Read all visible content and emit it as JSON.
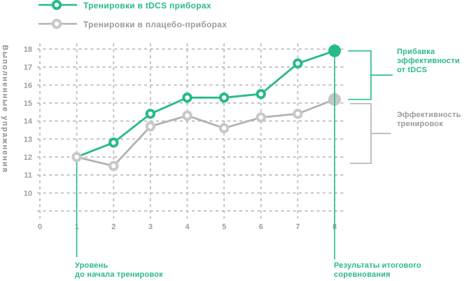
{
  "legend": {
    "items": [
      {
        "label": "Тренировки в tDCS приборах",
        "color": "#27bb85"
      },
      {
        "label": "Тренировки в плацебо-приборах",
        "color": "#9b9b9b"
      }
    ]
  },
  "axes": {
    "y_title": "Выполненные упражнения",
    "x_ticks": [
      "0",
      "1",
      "2",
      "3",
      "4",
      "5",
      "6",
      "7",
      "8"
    ],
    "y_ticks": [
      "10",
      "11",
      "12",
      "13",
      "14",
      "15",
      "16",
      "17",
      "18"
    ]
  },
  "annotations": {
    "gain": {
      "lines": [
        "Прибавка",
        "эффективности",
        "от tDCS"
      ],
      "color": "#27bb85"
    },
    "training_effect": {
      "lines": [
        "Эффективность",
        "тренировок"
      ],
      "color": "#9b9b9b"
    },
    "baseline": {
      "lines": [
        "Уровень",
        "до начала тренировок"
      ],
      "color": "#27bb85"
    },
    "final": {
      "lines": [
        "Результаты итогового",
        "соревнования"
      ],
      "color": "#27bb85"
    }
  },
  "chart_data": {
    "type": "line",
    "x": [
      1,
      2,
      3,
      4,
      5,
      6,
      7,
      8
    ],
    "series": [
      {
        "name": "Тренировки в tDCS приборах",
        "color": "#27bb85",
        "values": [
          12,
          12.8,
          14.4,
          15.3,
          15.3,
          15.5,
          17.2,
          17.9
        ]
      },
      {
        "name": "Тренировки в плацебо-приборах",
        "color": "#b2b2b2",
        "values": [
          12,
          11.5,
          13.7,
          14.3,
          13.6,
          14.2,
          14.4,
          15.2
        ]
      }
    ],
    "ylabel": "Выполненные упражнения",
    "xlabel": "",
    "xlim": [
      0,
      8
    ],
    "ylim": [
      9,
      18
    ],
    "x_tick_values": [
      0,
      1,
      2,
      3,
      4,
      5,
      6,
      7,
      8
    ],
    "y_tick_values": [
      10,
      11,
      12,
      13,
      14,
      15,
      16,
      17,
      18
    ],
    "grid": "dashed",
    "highlighted_x": [
      1,
      8
    ],
    "legend_position": "top-left",
    "marker_style": "ring-with-white-center",
    "endpoint_marker_style": "large-solid-circle"
  }
}
